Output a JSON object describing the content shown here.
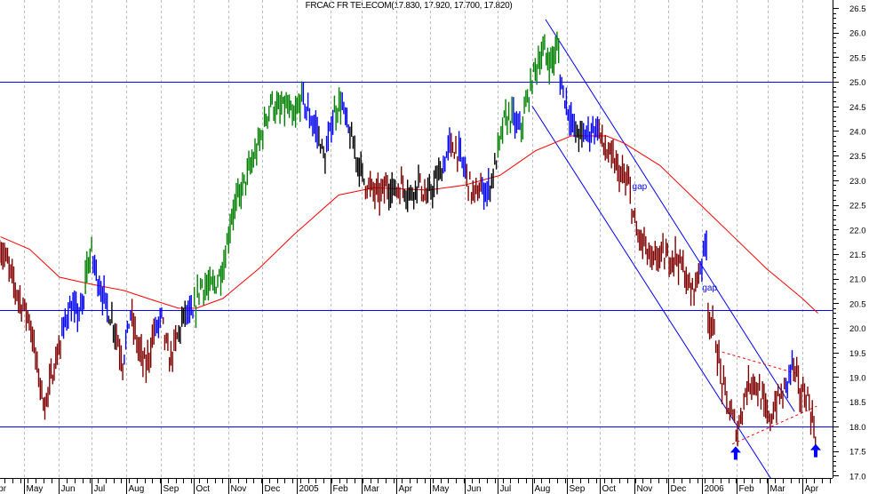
{
  "chart_data": {
    "type": "bar",
    "subtype": "ohlc-price-chart",
    "title": "FRCAC FR TELECOM(17.830, 17.920, 17.700, 17.820)",
    "xlabel": "",
    "ylabel": "",
    "ylim": [
      17.0,
      26.5
    ],
    "xlim": [
      "2004-04-10",
      "2006-04-28"
    ],
    "y_ticks": [
      "17.0",
      "17.5",
      "18.0",
      "18.5",
      "19.0",
      "19.5",
      "20.0",
      "20.5",
      "21.0",
      "21.5",
      "22.0",
      "22.5",
      "23.0",
      "23.5",
      "24.0",
      "24.5",
      "25.0",
      "25.5",
      "26.0",
      "26.5"
    ],
    "x_tick_labels": [
      {
        "date": "2004-04-01",
        "label": "Apr"
      },
      {
        "date": "2004-05-01",
        "label": "May"
      },
      {
        "date": "2004-06-01",
        "label": "Jun"
      },
      {
        "date": "2004-07-01",
        "label": "Jul"
      },
      {
        "date": "2004-08-01",
        "label": "Aug"
      },
      {
        "date": "2004-09-01",
        "label": "Sep"
      },
      {
        "date": "2004-10-01",
        "label": "Oct"
      },
      {
        "date": "2004-11-01",
        "label": "Nov"
      },
      {
        "date": "2004-12-01",
        "label": "Dec"
      },
      {
        "date": "2005-01-01",
        "label": "2005"
      },
      {
        "date": "2005-02-01",
        "label": "Feb"
      },
      {
        "date": "2005-03-01",
        "label": "Mar"
      },
      {
        "date": "2005-04-01",
        "label": "Apr"
      },
      {
        "date": "2005-05-01",
        "label": "May"
      },
      {
        "date": "2005-06-01",
        "label": "Jun"
      },
      {
        "date": "2005-07-01",
        "label": "Jul"
      },
      {
        "date": "2005-08-01",
        "label": "Aug"
      },
      {
        "date": "2005-09-01",
        "label": "Sep"
      },
      {
        "date": "2005-10-01",
        "label": "Oct"
      },
      {
        "date": "2005-11-01",
        "label": "Nov"
      },
      {
        "date": "2005-12-01",
        "label": "Dec"
      },
      {
        "date": "2006-01-01",
        "label": "2006"
      },
      {
        "date": "2006-02-01",
        "label": "Feb"
      },
      {
        "date": "2006-03-01",
        "label": "Mar"
      },
      {
        "date": "2006-04-01",
        "label": "Apr"
      }
    ],
    "grid": {
      "vertical": true,
      "horizontal": false,
      "style": "dashed"
    },
    "colors": {
      "r": "#800000",
      "g": "#008000",
      "b": "#0000ff",
      "k": "#000000",
      "ma": "#ff0000",
      "lines": "#0000ff",
      "axis": "#000000",
      "grid": "#bbbbbb"
    },
    "weekly_closes": [
      [
        "2004-04-12",
        21.4,
        "r"
      ],
      [
        "2004-04-19",
        20.9,
        "r"
      ],
      [
        "2004-04-26",
        20.5,
        "r"
      ],
      [
        "2004-05-03",
        20.2,
        "r"
      ],
      [
        "2004-05-10",
        19.2,
        "r"
      ],
      [
        "2004-05-17",
        18.4,
        "r"
      ],
      [
        "2004-05-24",
        19.1,
        "r"
      ],
      [
        "2004-05-31",
        19.7,
        "r"
      ],
      [
        "2004-06-07",
        20.4,
        "b"
      ],
      [
        "2004-06-14",
        20.3,
        "b"
      ],
      [
        "2004-06-21",
        20.4,
        "b"
      ],
      [
        "2004-06-28",
        21.5,
        "g"
      ],
      [
        "2004-07-05",
        20.9,
        "b"
      ],
      [
        "2004-07-12",
        20.4,
        "b"
      ],
      [
        "2004-07-19",
        20.0,
        "k"
      ],
      [
        "2004-07-26",
        19.3,
        "r"
      ],
      [
        "2004-08-02",
        20.3,
        "b"
      ],
      [
        "2004-08-09",
        19.6,
        "r"
      ],
      [
        "2004-08-16",
        19.2,
        "r"
      ],
      [
        "2004-08-23",
        19.9,
        "r"
      ],
      [
        "2004-08-30",
        20.2,
        "b"
      ],
      [
        "2004-09-06",
        19.3,
        "r"
      ],
      [
        "2004-09-13",
        19.8,
        "r"
      ],
      [
        "2004-09-20",
        20.3,
        "k"
      ],
      [
        "2004-09-27",
        20.2,
        "b"
      ],
      [
        "2004-10-04",
        20.9,
        "g"
      ],
      [
        "2004-10-11",
        20.8,
        "g"
      ],
      [
        "2004-10-18",
        20.9,
        "g"
      ],
      [
        "2004-10-25",
        21.3,
        "g"
      ],
      [
        "2004-11-01",
        22.3,
        "g"
      ],
      [
        "2004-11-08",
        22.7,
        "g"
      ],
      [
        "2004-11-15",
        23.1,
        "g"
      ],
      [
        "2004-11-22",
        23.5,
        "g"
      ],
      [
        "2004-11-29",
        24.0,
        "g"
      ],
      [
        "2004-12-06",
        24.6,
        "g"
      ],
      [
        "2004-12-13",
        24.4,
        "g"
      ],
      [
        "2004-12-20",
        24.5,
        "g"
      ],
      [
        "2004-12-27",
        24.2,
        "g"
      ],
      [
        "2005-01-03",
        24.7,
        "g"
      ],
      [
        "2005-01-10",
        24.3,
        "b"
      ],
      [
        "2005-01-17",
        24.0,
        "b"
      ],
      [
        "2005-01-24",
        23.4,
        "k"
      ],
      [
        "2005-01-31",
        24.3,
        "b"
      ],
      [
        "2005-02-07",
        24.6,
        "g"
      ],
      [
        "2005-02-14",
        24.0,
        "b"
      ],
      [
        "2005-02-21",
        23.5,
        "k"
      ],
      [
        "2005-02-28",
        23.0,
        "k"
      ],
      [
        "2005-03-07",
        22.8,
        "r"
      ],
      [
        "2005-03-14",
        22.7,
        "r"
      ],
      [
        "2005-03-21",
        22.9,
        "r"
      ],
      [
        "2005-03-28",
        22.8,
        "k"
      ],
      [
        "2005-04-04",
        22.9,
        "r"
      ],
      [
        "2005-04-11",
        22.7,
        "k"
      ],
      [
        "2005-04-18",
        23.0,
        "k"
      ],
      [
        "2005-04-25",
        22.6,
        "r"
      ],
      [
        "2005-05-02",
        22.9,
        "k"
      ],
      [
        "2005-05-09",
        23.2,
        "k"
      ],
      [
        "2005-05-16",
        23.7,
        "b"
      ],
      [
        "2005-05-23",
        23.6,
        "r"
      ],
      [
        "2005-05-30",
        23.2,
        "b"
      ],
      [
        "2005-06-06",
        22.7,
        "r"
      ],
      [
        "2005-06-13",
        22.8,
        "r"
      ],
      [
        "2005-06-20",
        22.8,
        "b"
      ],
      [
        "2005-06-27",
        23.4,
        "k"
      ],
      [
        "2005-07-04",
        24.2,
        "g"
      ],
      [
        "2005-07-11",
        24.3,
        "g"
      ],
      [
        "2005-07-18",
        24.0,
        "b"
      ],
      [
        "2005-07-25",
        24.6,
        "g"
      ],
      [
        "2005-08-01",
        25.3,
        "g"
      ],
      [
        "2005-08-08",
        25.6,
        "g"
      ],
      [
        "2005-08-15",
        25.4,
        "g"
      ],
      [
        "2005-08-22",
        25.7,
        "g"
      ],
      [
        "2005-08-29",
        24.6,
        "b"
      ],
      [
        "2005-09-05",
        24.0,
        "b"
      ],
      [
        "2005-09-12",
        23.9,
        "k"
      ],
      [
        "2005-09-19",
        24.0,
        "b"
      ],
      [
        "2005-09-26",
        24.1,
        "b"
      ],
      [
        "2005-10-03",
        23.6,
        "r"
      ],
      [
        "2005-10-10",
        23.4,
        "r"
      ],
      [
        "2005-10-17",
        23.1,
        "r"
      ],
      [
        "2005-10-24",
        22.9,
        "r"
      ],
      [
        "2005-10-31",
        21.9,
        "r"
      ],
      [
        "2005-11-07",
        21.7,
        "r"
      ],
      [
        "2005-11-14",
        21.3,
        "r"
      ],
      [
        "2005-11-21",
        21.5,
        "r"
      ],
      [
        "2005-11-28",
        21.4,
        "r"
      ],
      [
        "2005-12-05",
        21.5,
        "r"
      ],
      [
        "2005-12-12",
        21.2,
        "r"
      ],
      [
        "2005-12-19",
        20.7,
        "r"
      ],
      [
        "2005-12-26",
        21.1,
        "r"
      ],
      [
        "2006-01-02",
        21.8,
        "b"
      ],
      [
        "2006-01-09",
        19.9,
        "r"
      ],
      [
        "2006-01-16",
        18.9,
        "r"
      ],
      [
        "2006-01-23",
        18.3,
        "r"
      ],
      [
        "2006-01-30",
        17.9,
        "r"
      ],
      [
        "2006-02-06",
        18.7,
        "r"
      ],
      [
        "2006-02-13",
        19.0,
        "r"
      ],
      [
        "2006-02-20",
        18.6,
        "r"
      ],
      [
        "2006-02-27",
        18.1,
        "r"
      ],
      [
        "2006-03-06",
        18.5,
        "r"
      ],
      [
        "2006-03-13",
        18.7,
        "r"
      ],
      [
        "2006-03-20",
        19.3,
        "b"
      ],
      [
        "2006-03-27",
        18.7,
        "r"
      ],
      [
        "2006-04-03",
        18.6,
        "r"
      ],
      [
        "2006-04-10",
        17.82,
        "r"
      ]
    ],
    "moving_average": [
      [
        "2004-04-10",
        21.85
      ],
      [
        "2004-05-06",
        21.6
      ],
      [
        "2004-06-02",
        21.03
      ],
      [
        "2004-06-28",
        20.9
      ],
      [
        "2004-07-30",
        20.76
      ],
      [
        "2004-08-23",
        20.58
      ],
      [
        "2004-09-17",
        20.4
      ],
      [
        "2004-10-03",
        20.4
      ],
      [
        "2004-10-27",
        20.6
      ],
      [
        "2004-11-28",
        21.2
      ],
      [
        "2004-12-30",
        21.9
      ],
      [
        "2005-02-08",
        22.7
      ],
      [
        "2005-03-12",
        22.85
      ],
      [
        "2005-04-30",
        22.8
      ],
      [
        "2005-06-01",
        22.9
      ],
      [
        "2005-07-03",
        23.1
      ],
      [
        "2005-08-04",
        23.6
      ],
      [
        "2005-09-05",
        23.9
      ],
      [
        "2005-10-07",
        23.9
      ],
      [
        "2005-10-23",
        23.75
      ],
      [
        "2005-11-24",
        23.3
      ],
      [
        "2005-12-26",
        22.6
      ],
      [
        "2006-01-27",
        21.9
      ],
      [
        "2006-02-28",
        21.2
      ],
      [
        "2006-04-01",
        20.6
      ],
      [
        "2006-04-15",
        20.3
      ]
    ],
    "horizontal_lines": [
      25.0,
      20.37,
      18.0
    ],
    "trend_lines": [
      {
        "from": [
          "2005-08-13",
          26.27
        ],
        "to": [
          "2006-03-25",
          18.3
        ],
        "style": "solid"
      },
      {
        "from": [
          "2005-08-01",
          24.51
        ],
        "to": [
          "2006-03-04",
          16.93
        ],
        "style": "solid"
      },
      {
        "from": [
          "2006-01-19",
          19.51
        ],
        "to": [
          "2006-03-26",
          19.08
        ],
        "style": "dashed"
      },
      {
        "from": [
          "2006-01-28",
          17.64
        ],
        "to": [
          "2006-04-14",
          18.41
        ],
        "style": "dashed"
      }
    ],
    "annotations": [
      {
        "text": "gap",
        "date": "2005-10-30",
        "value": 22.87
      },
      {
        "text": "gap",
        "date": "2006-01-01",
        "value": 20.81
      }
    ],
    "arrows": [
      {
        "date": "2006-01-31",
        "value": 17.45,
        "direction": "up"
      },
      {
        "date": "2006-04-13",
        "value": 17.5,
        "direction": "up"
      }
    ]
  }
}
